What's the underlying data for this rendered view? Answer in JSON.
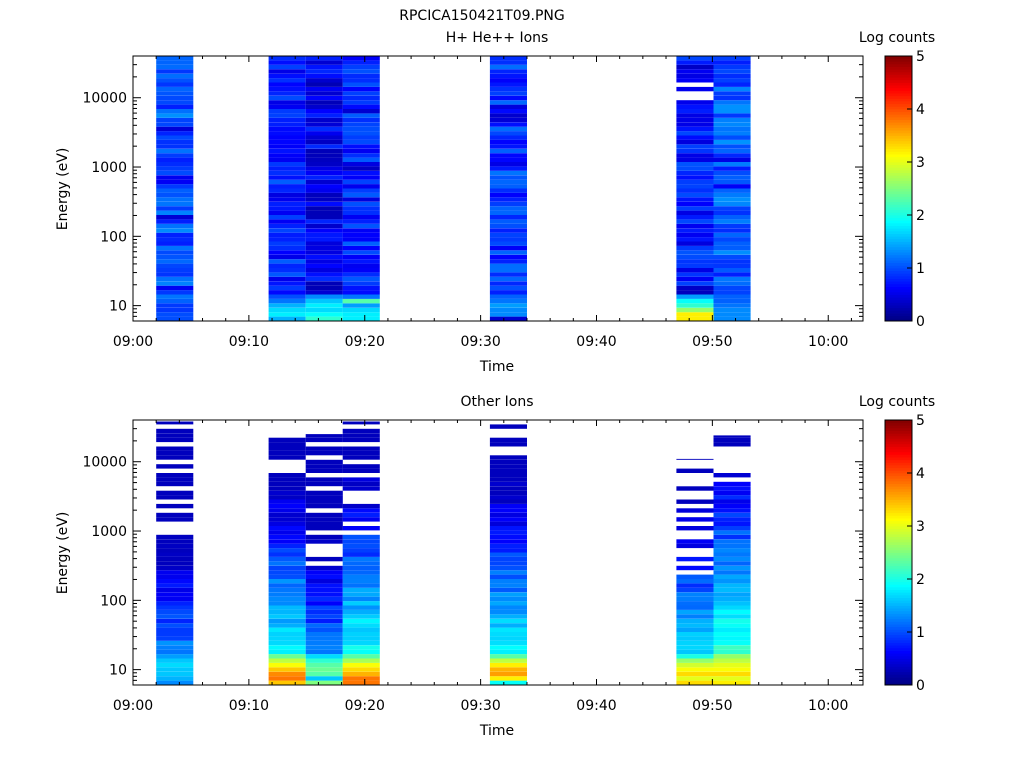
{
  "figure_title": "RPCICA150421T09.PNG",
  "colors": {
    "background": "#ffffff",
    "axis": "#000000"
  },
  "colormap": "jet",
  "chart_data": [
    {
      "type": "heatmap",
      "title": "H+ He++ Ions",
      "xlabel": "Time",
      "ylabel": "Energy (eV)",
      "x_ticks": [
        "09:00",
        "09:10",
        "09:20",
        "09:30",
        "09:40",
        "09:50",
        "10:00"
      ],
      "y_ticks": [
        "10",
        "100",
        "1000",
        "10000"
      ],
      "y_scale": "log",
      "ylim": [
        6,
        40000
      ],
      "xlim_minutes": [
        0,
        63
      ],
      "colorbar": {
        "label": "Log counts",
        "ticks": [
          "0",
          "1",
          "2",
          "3",
          "4",
          "5"
        ],
        "range": [
          0,
          5
        ]
      },
      "columns": [
        {
          "t_start": 2.0,
          "t_end": 5.2,
          "base": 1.05,
          "low": [
            1.0,
            1.0,
            0.9,
            0.9,
            1.1,
            1.2
          ],
          "dropouts": 0,
          "dark": 0.35
        },
        {
          "t_start": 11.7,
          "t_end": 14.9,
          "base": 0.8,
          "low": [
            1.5,
            1.8,
            1.7,
            1.5,
            1.2,
            1.0
          ],
          "dropouts": 0,
          "dark": 0.3
        },
        {
          "t_start": 14.9,
          "t_end": 18.1,
          "base": 0.55,
          "low": [
            2.1,
            1.9,
            1.7,
            1.8,
            1.6,
            1.3
          ],
          "dropouts": 0,
          "dark": 0.4
        },
        {
          "t_start": 18.1,
          "t_end": 21.3,
          "base": 0.8,
          "low": [
            1.8,
            1.8,
            1.7,
            1.4,
            2.3,
            1.2
          ],
          "dropouts": 0,
          "dark": 0.3
        },
        {
          "t_start": 30.8,
          "t_end": 34.0,
          "base": 0.9,
          "low": [
            0.4,
            1.3,
            1.3,
            1.4,
            1.2,
            1.1
          ],
          "dropouts": 0,
          "dark": 0.3
        },
        {
          "t_start": 46.9,
          "t_end": 50.1,
          "base": 0.75,
          "low": [
            3.2,
            3.2,
            2.6,
            2.1,
            1.9,
            1.4
          ],
          "dropouts": 4,
          "dark": 0.3
        },
        {
          "t_start": 50.1,
          "t_end": 53.3,
          "base": 1.05,
          "low": [
            1.3,
            1.3,
            1.3,
            1.2,
            1.1,
            1.1
          ],
          "dropouts": 1,
          "dark": 0.3
        }
      ]
    },
    {
      "type": "heatmap",
      "title": "Other Ions",
      "xlabel": "Time",
      "ylabel": "Energy (eV)",
      "x_ticks": [
        "09:00",
        "09:10",
        "09:20",
        "09:30",
        "09:40",
        "09:50",
        "10:00"
      ],
      "y_ticks": [
        "10",
        "100",
        "1000",
        "10000"
      ],
      "y_scale": "log",
      "ylim": [
        6,
        40000
      ],
      "xlim_minutes": [
        0,
        63
      ],
      "colorbar": {
        "label": "Log counts",
        "ticks": [
          "0",
          "1",
          "2",
          "3",
          "4",
          "5"
        ],
        "range": [
          0,
          5
        ]
      },
      "columns": [
        {
          "t_start": 2.0,
          "t_end": 5.2,
          "top_eV": 38000,
          "low": [
            1.3,
            1.5,
            1.6,
            1.6,
            1.7,
            1.6,
            1.4,
            1.2
          ],
          "sparse_above_eV": 700
        },
        {
          "t_start": 11.7,
          "t_end": 14.9,
          "top_eV": 28000,
          "low": [
            3.4,
            3.8,
            3.7,
            3.4,
            3.1,
            2.8,
            2.4,
            1.8
          ],
          "sparse_above_eV": 5500
        },
        {
          "t_start": 14.9,
          "t_end": 18.1,
          "top_eV": 25000,
          "low": [
            2.5,
            1.6,
            2.3,
            2.4,
            2.3,
            2.1,
            1.7,
            1.2
          ],
          "sparse_above_eV": 300
        },
        {
          "t_start": 18.1,
          "t_end": 21.3,
          "top_eV": 38000,
          "low": [
            3.8,
            3.8,
            3.5,
            3.3,
            3.1,
            2.7,
            2.3,
            1.9
          ],
          "sparse_above_eV": 800
        },
        {
          "t_start": 30.8,
          "t_end": 34.0,
          "top_eV": 38000,
          "low": [
            1.9,
            3.2,
            3.6,
            3.5,
            3.2,
            2.8,
            2.3,
            1.8
          ],
          "sparse_above_eV": 11000
        },
        {
          "t_start": 46.9,
          "t_end": 50.1,
          "top_eV": 11000,
          "low": [
            3.3,
            3.0,
            3.3,
            3.1,
            2.9,
            2.6,
            2.0,
            1.6
          ],
          "sparse_above_eV": 200
        },
        {
          "t_start": 50.1,
          "t_end": 53.3,
          "top_eV": 24000,
          "low": [
            3.2,
            3.0,
            3.3,
            3.1,
            3.0,
            2.8,
            2.6,
            2.1
          ],
          "sparse_above_eV": 5000
        }
      ]
    }
  ]
}
